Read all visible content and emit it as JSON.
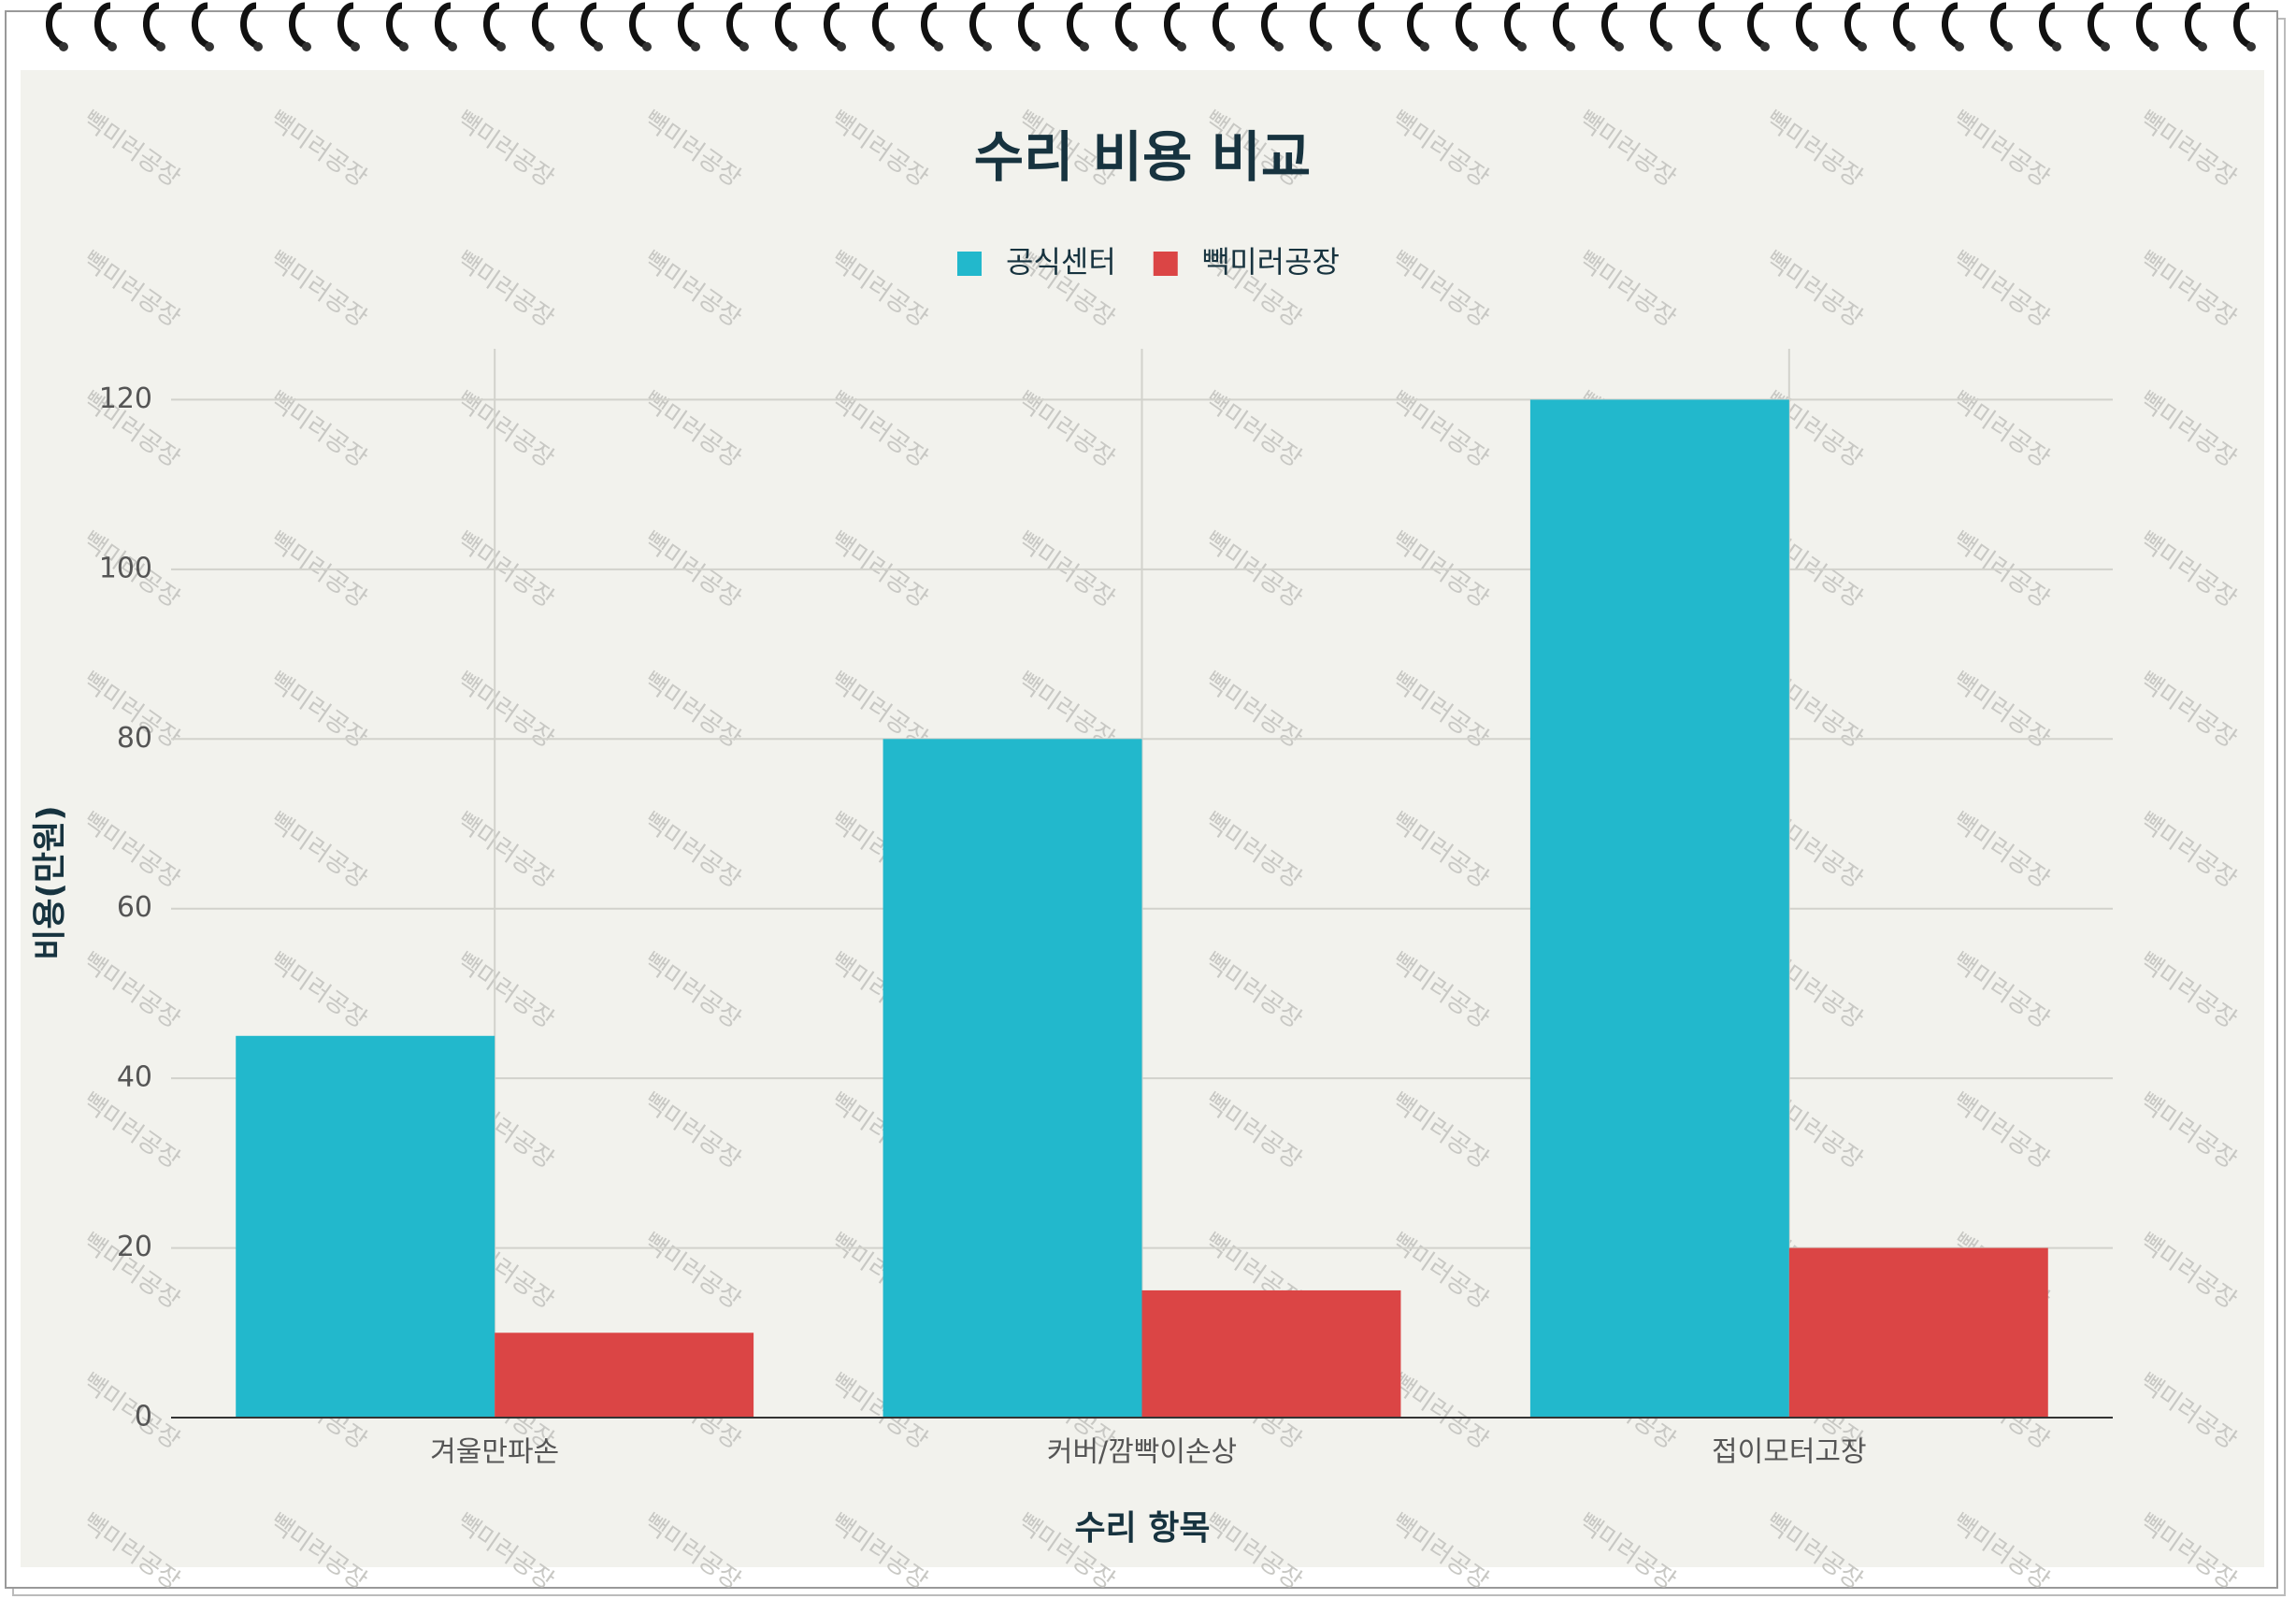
{
  "chart_data": {
    "type": "bar",
    "title": "수리 비용 비교",
    "x_label": "수리 항목",
    "y_label": "비용(만원)",
    "watermark": "빽미러공장",
    "categories": [
      "겨울만파손",
      "커버/깜빡이손상",
      "접이모터고장"
    ],
    "series": [
      {
        "name": "공식센터",
        "color": "#22b8cc",
        "values": [
          45,
          80,
          120
        ]
      },
      {
        "name": "빽미러공장",
        "color": "#db4545",
        "values": [
          10,
          15,
          20
        ]
      }
    ],
    "ylim": [
      0,
      126
    ],
    "yticks": [
      0,
      20,
      40,
      60,
      80,
      100,
      120
    ],
    "grid": true,
    "legend": "top"
  }
}
